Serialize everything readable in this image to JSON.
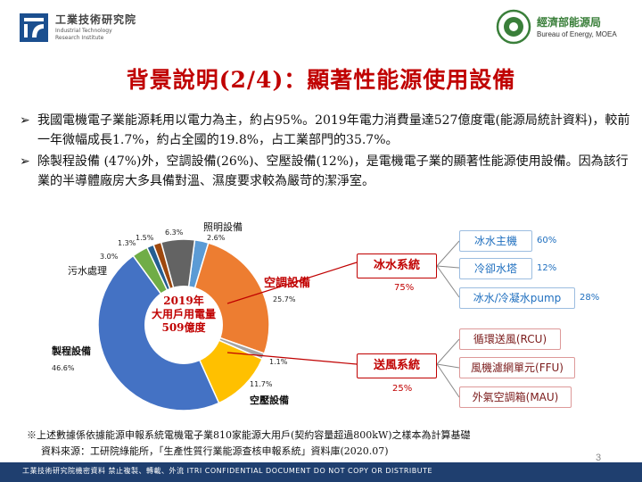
{
  "header": {
    "org_left_cn": "工業技術研究院",
    "org_left_en": [
      "Industrial Technology",
      "Research Institute"
    ],
    "org_right_cn": "經濟部能源局",
    "org_right_en": "Bureau of Energy, MOEA"
  },
  "title": "背景說明(2/4)：顯著性能源使用設備",
  "bullets": [
    "我國電機電子業能源耗用以電力為主，約占95%。2019年電力消費量達527億度電(能源局統計資料)，較前一年微幅成長1.7%，約占全國的19.8%，占工業部門的35.7%。",
    "除製程設備 (47%)外，空調設備(26%)、空壓設備(12%)，是電機電子業的顯著性能源使用設備。因為該行業的半導體廠房大多具備對溫、濕度要求較為嚴苛的潔淨室。"
  ],
  "chart_data": {
    "type": "pie",
    "center_label": [
      "2019年",
      "大用戶用電量",
      "509億度"
    ],
    "slices": [
      {
        "name": "照明設備",
        "value": 2.6,
        "label": "2.6%",
        "color": "#5b9bd5"
      },
      {
        "name": "空調設備",
        "value": 25.7,
        "label": "25.7%",
        "color": "#ed7d31"
      },
      {
        "name": "",
        "value": 1.1,
        "label": "1.1%",
        "color": "#a5a5a5"
      },
      {
        "name": "空壓設備",
        "value": 11.7,
        "label": "11.7%",
        "color": "#ffc000"
      },
      {
        "name": "製程設備",
        "value": 46.6,
        "label": "46.6%",
        "color": "#4472c4"
      },
      {
        "name": "污水處理",
        "value": 3.0,
        "label": "3.0%",
        "color": "#70ad47"
      },
      {
        "name": "",
        "value": 1.3,
        "label": "1.3%",
        "color": "#255e91"
      },
      {
        "name": "",
        "value": 1.5,
        "label": "1.5%",
        "color": "#9e480e"
      },
      {
        "name": "",
        "value": 6.3,
        "label": "6.3%",
        "color": "#636363"
      }
    ]
  },
  "breakdown": {
    "groups": [
      {
        "name": "冰水系統",
        "pct": "75%",
        "items": [
          {
            "name": "冰水主機",
            "pct": "60%"
          },
          {
            "name": "冷卻水塔",
            "pct": "12%"
          },
          {
            "name": "冰水/冷凝水pump",
            "pct": "28%"
          }
        ]
      },
      {
        "name": "送風系統",
        "pct": "25%",
        "items": [
          {
            "name": "循環送風(RCU)",
            "pct": ""
          },
          {
            "name": "風機濾網單元(FFU)",
            "pct": ""
          },
          {
            "name": "外氣空調箱(MAU)",
            "pct": ""
          }
        ]
      }
    ]
  },
  "note": [
    "※上述數據係依據能源申報系統電機電子業810家能源大用戶(契約容量超過800kW)之樣本為計算基礎",
    "資料來源：工研院綠能所，「生產性質行業能源查核申報系統」資料庫(2020.07)"
  ],
  "footer": "工業技術研究院機密資料 禁止複製、轉載、外流 ITRI CONFIDENTIAL DOCUMENT DO NOT COPY OR DISTRIBUTE",
  "page_number": "3",
  "colors": {
    "title": "#c00000",
    "footer_bar": "#1f3f6f",
    "blue_text": "#1f6fbf",
    "red_text": "#7b1b1b"
  }
}
